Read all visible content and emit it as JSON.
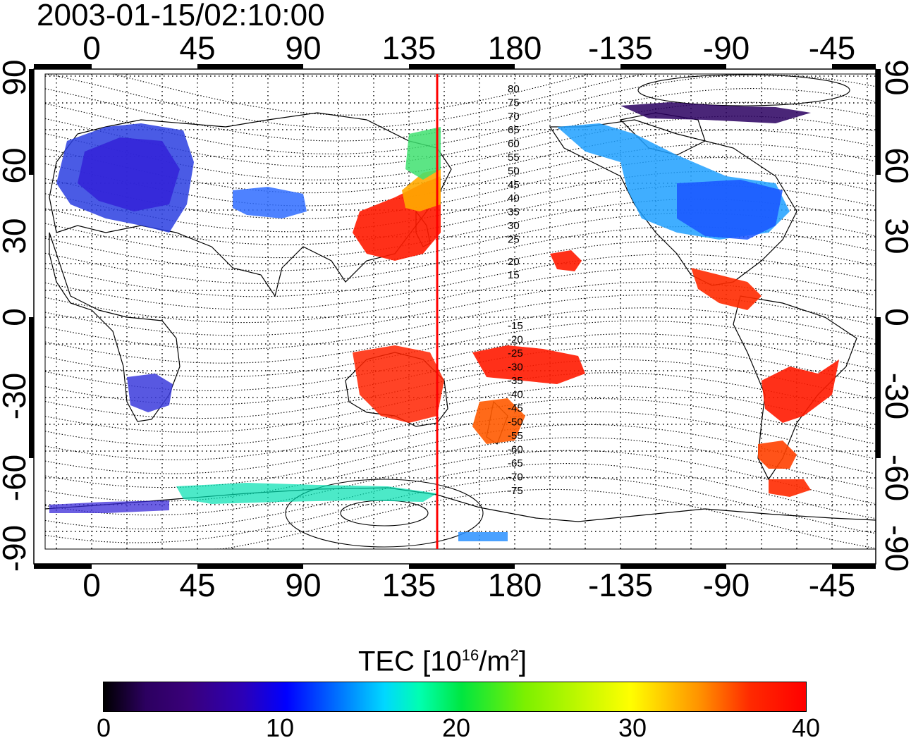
{
  "title": "2003-01-15/02:10:00",
  "map": {
    "x_ticks": [
      "0",
      "45",
      "90",
      "135",
      "180",
      "-135",
      "-90",
      "-45"
    ],
    "y_ticks": [
      "90",
      "60",
      "30",
      "0",
      "-30",
      "-60",
      "-90"
    ],
    "magnetic_latitude_labels": {
      "north": [
        "80",
        "75",
        "70",
        "65",
        "60",
        "55",
        "50",
        "45",
        "40",
        "35",
        "30",
        "25",
        "20",
        "15"
      ],
      "south": [
        "-15",
        "-20",
        "-25",
        "-30",
        "-35",
        "-40",
        "-45",
        "-50",
        "-55",
        "-60",
        "-65",
        "-70",
        "-75"
      ]
    },
    "marker_longitude": "147",
    "marker_color": "#ff0000"
  },
  "colorbar": {
    "title": "TEC  [10",
    "title_exp": "16",
    "title_mid": "/m",
    "title_exp2": "2",
    "title_end": "]",
    "labels": [
      "0",
      "10",
      "20",
      "30",
      "40"
    ],
    "colors": [
      "#000000",
      "#3a007a",
      "#0000ff",
      "#00d8ff",
      "#00e640",
      "#ffff00",
      "#ff9000",
      "#ff0000"
    ]
  }
}
